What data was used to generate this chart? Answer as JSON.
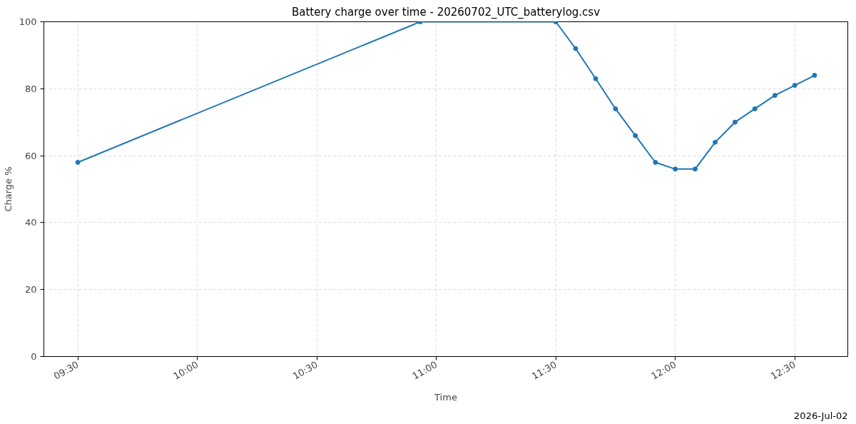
{
  "chart_data": {
    "type": "line",
    "title": "Battery charge over time - 20260702_UTC_batterylog.csv",
    "xlabel": "Time",
    "ylabel": "Charge %",
    "annotations": [
      "2026-Jul-02"
    ],
    "x": [
      9.5,
      10.933,
      11.5,
      11.583,
      11.667,
      11.75,
      11.833,
      11.917,
      12.0,
      12.083,
      12.167,
      12.25,
      12.333,
      12.417,
      12.5,
      12.583
    ],
    "series": [
      {
        "color": "#1f77b4",
        "values": [
          58,
          100,
          100,
          92,
          83,
          74,
          66,
          58,
          56,
          56,
          64,
          70,
          74,
          78,
          81,
          84
        ]
      }
    ],
    "xlim": [
      9.358,
      12.722
    ],
    "xticks": [
      {
        "value": 9.5,
        "label": "09:30"
      },
      {
        "value": 10.0,
        "label": "10:00"
      },
      {
        "value": 10.5,
        "label": "10:30"
      },
      {
        "value": 11.0,
        "label": "11:00"
      },
      {
        "value": 11.5,
        "label": "11:30"
      },
      {
        "value": 12.0,
        "label": "12:00"
      },
      {
        "value": 12.5,
        "label": "12:30"
      }
    ],
    "ylim": [
      0,
      100
    ],
    "yticks": [
      0,
      20,
      40,
      60,
      80,
      100
    ],
    "grid": true,
    "marker": "circle",
    "line_style": "solid"
  }
}
